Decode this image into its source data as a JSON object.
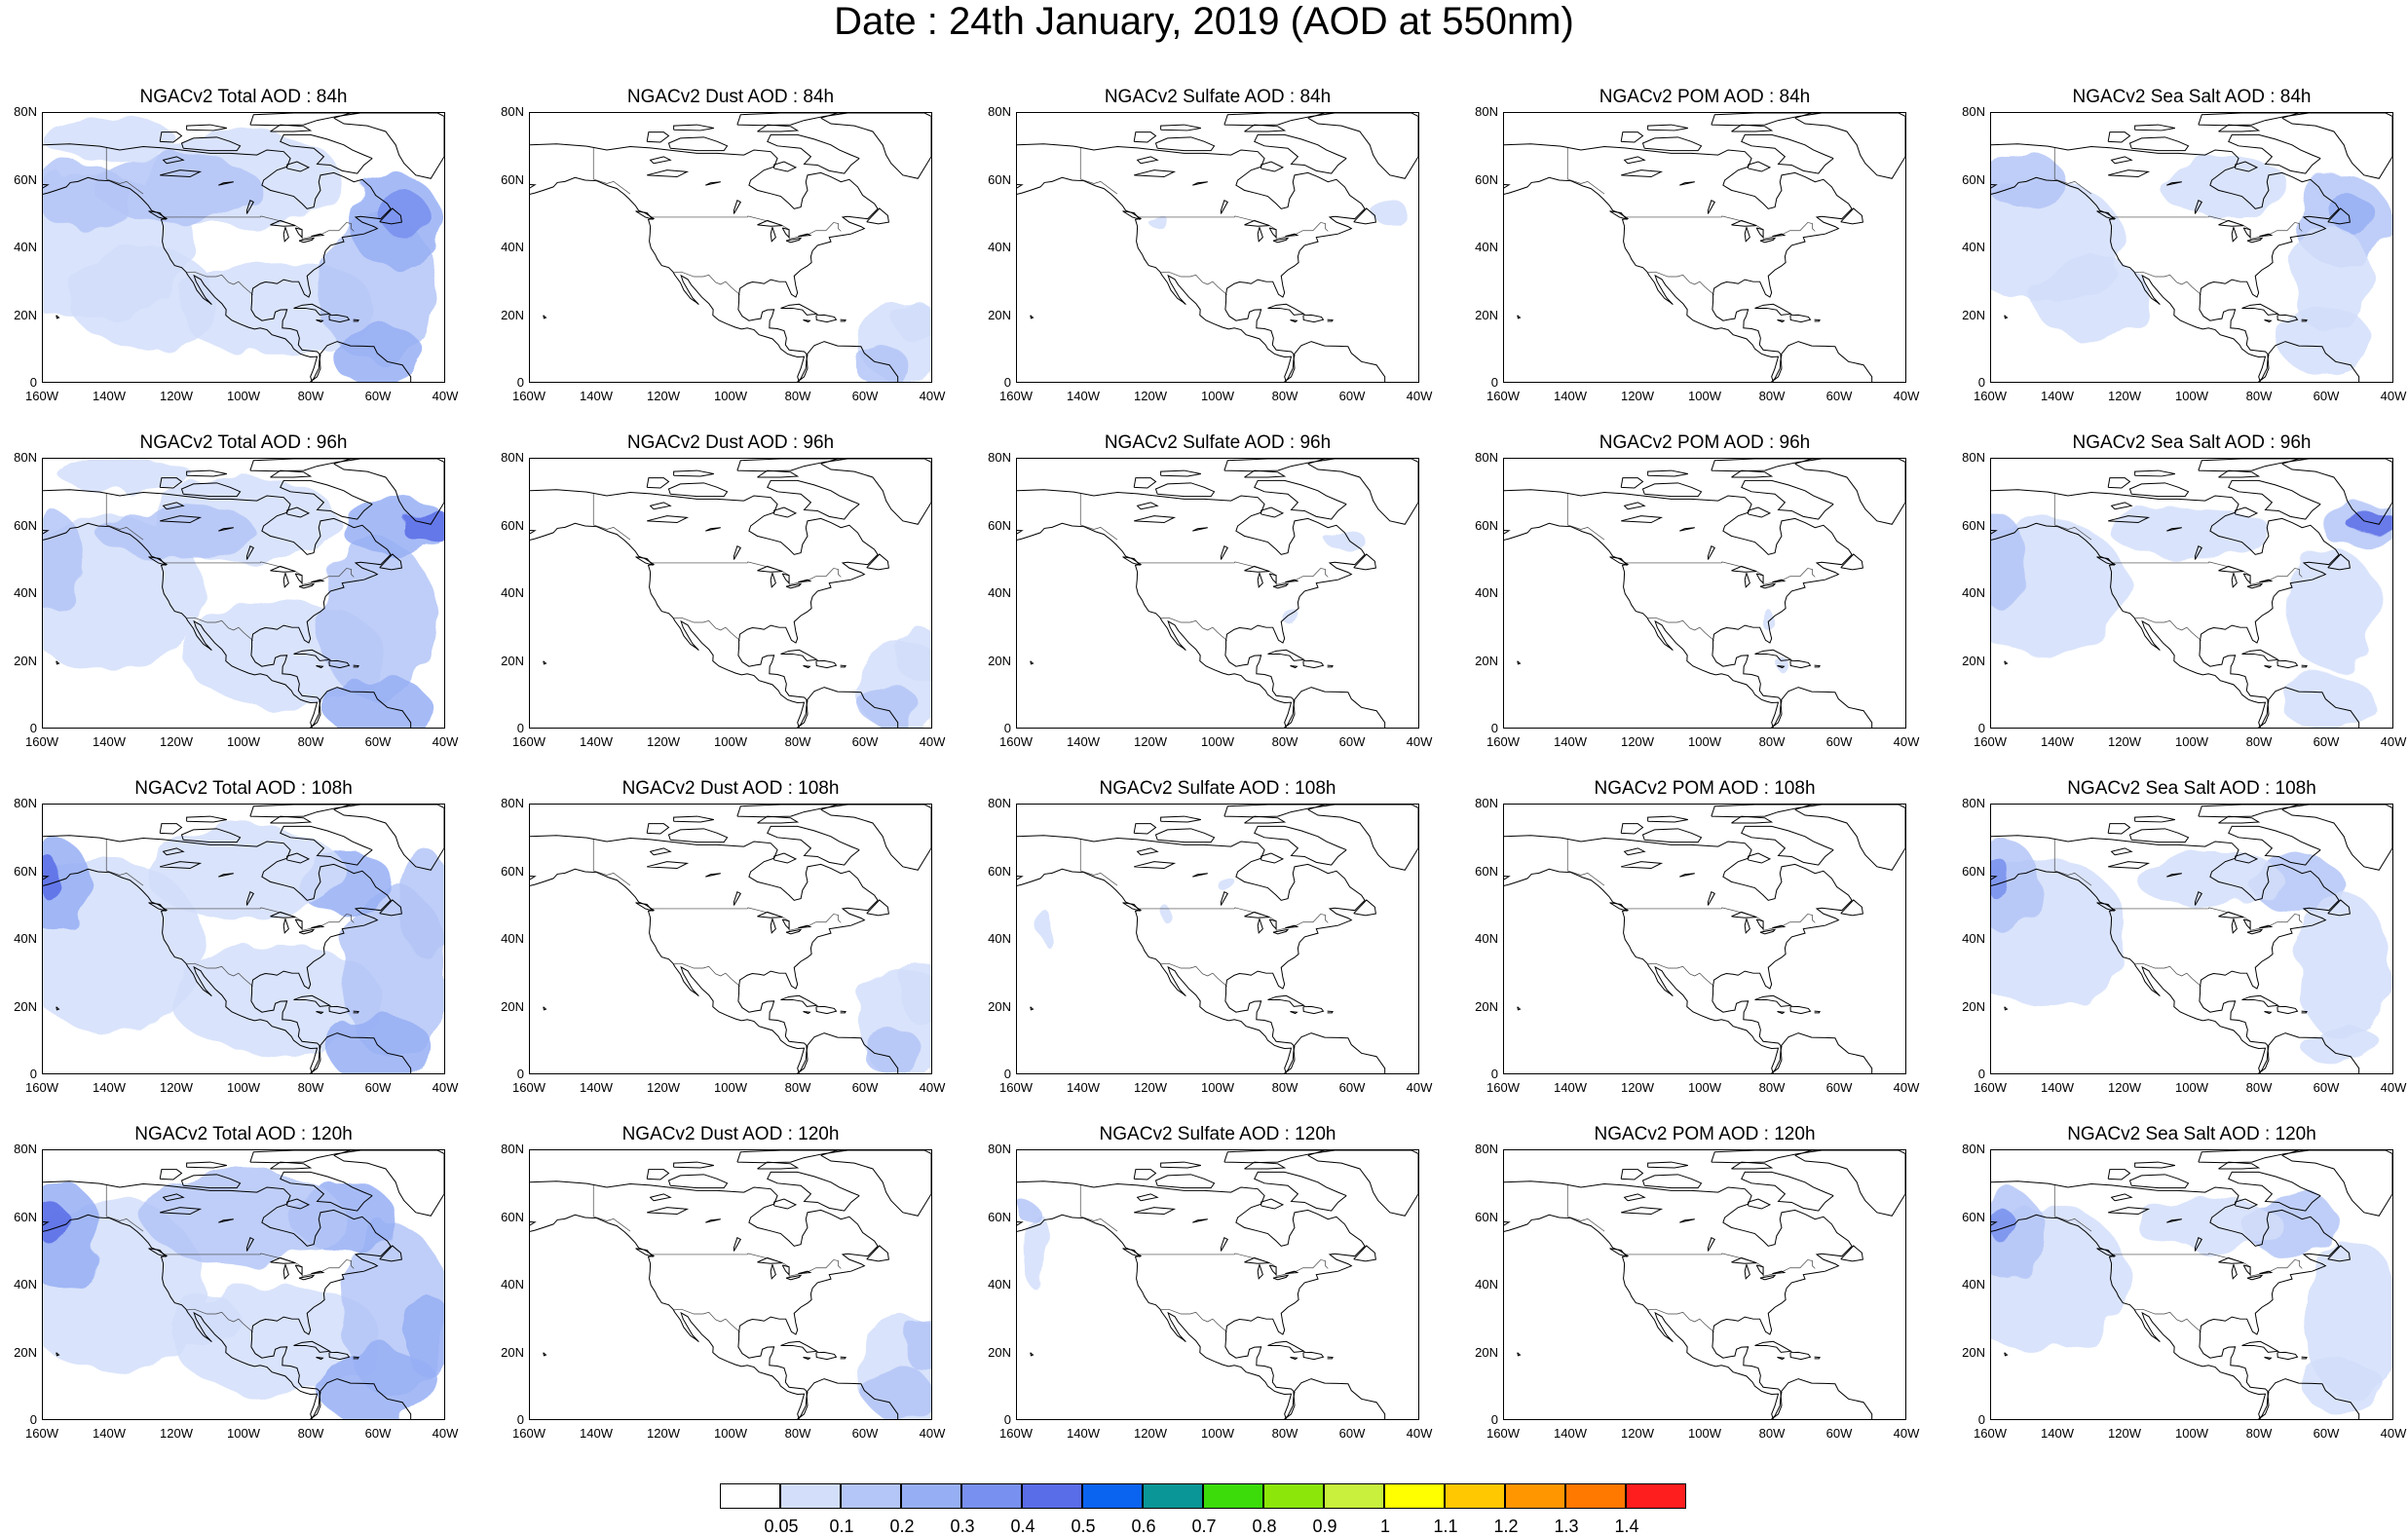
{
  "title": "Date : 24th January, 2019 (AOD at 550nm)",
  "lat_ticks": [
    "80N",
    "60N",
    "40N",
    "20N",
    "0"
  ],
  "lon_ticks": [
    "160W",
    "140W",
    "120W",
    "100W",
    "80W",
    "60W",
    "40W"
  ],
  "panels": [
    {
      "title": "NGACv2 Total AOD : 84h",
      "species": "total",
      "hour": 84
    },
    {
      "title": "NGACv2 Dust AOD : 84h",
      "species": "dust",
      "hour": 84
    },
    {
      "title": "NGACv2 Sulfate AOD : 84h",
      "species": "sulfate",
      "hour": 84
    },
    {
      "title": "NGACv2 POM AOD : 84h",
      "species": "pom",
      "hour": 84
    },
    {
      "title": "NGACv2 Sea Salt AOD : 84h",
      "species": "seasalt",
      "hour": 84
    },
    {
      "title": "NGACv2 Total AOD : 96h",
      "species": "total",
      "hour": 96
    },
    {
      "title": "NGACv2 Dust AOD : 96h",
      "species": "dust",
      "hour": 96
    },
    {
      "title": "NGACv2 Sulfate AOD : 96h",
      "species": "sulfate",
      "hour": 96
    },
    {
      "title": "NGACv2 POM AOD : 96h",
      "species": "pom",
      "hour": 96
    },
    {
      "title": "NGACv2 Sea Salt AOD : 96h",
      "species": "seasalt",
      "hour": 96
    },
    {
      "title": "NGACv2 Total AOD : 108h",
      "species": "total",
      "hour": 108
    },
    {
      "title": "NGACv2 Dust AOD : 108h",
      "species": "dust",
      "hour": 108
    },
    {
      "title": "NGACv2 Sulfate AOD : 108h",
      "species": "sulfate",
      "hour": 108
    },
    {
      "title": "NGACv2 POM AOD : 108h",
      "species": "pom",
      "hour": 108
    },
    {
      "title": "NGACv2 Sea Salt AOD : 108h",
      "species": "seasalt",
      "hour": 108
    },
    {
      "title": "NGACv2 Total AOD : 120h",
      "species": "total",
      "hour": 120
    },
    {
      "title": "NGACv2 Dust AOD : 120h",
      "species": "dust",
      "hour": 120
    },
    {
      "title": "NGACv2 Sulfate AOD : 120h",
      "species": "sulfate",
      "hour": 120
    },
    {
      "title": "NGACv2 POM AOD : 120h",
      "species": "pom",
      "hour": 120
    },
    {
      "title": "NGACv2 Sea Salt  AOD : 120h",
      "species": "seasalt",
      "hour": 120
    }
  ],
  "colorbar": {
    "labels": [
      "0.05",
      "0.1",
      "0.2",
      "0.3",
      "0.4",
      "0.5",
      "0.6",
      "0.7",
      "0.8",
      "0.9",
      "1",
      "1.1",
      "1.2",
      "1.3",
      "1.4"
    ],
    "colors": [
      "#ffffff",
      "#d2defa",
      "#b4c6f7",
      "#96aff4",
      "#7890ef",
      "#5a6de8",
      "#0a64f0",
      "#0a9696",
      "#3cdc0a",
      "#8ce60a",
      "#c8f03c",
      "#ffff00",
      "#ffc800",
      "#ff9600",
      "#ff7800",
      "#ff1e1e"
    ]
  }
}
